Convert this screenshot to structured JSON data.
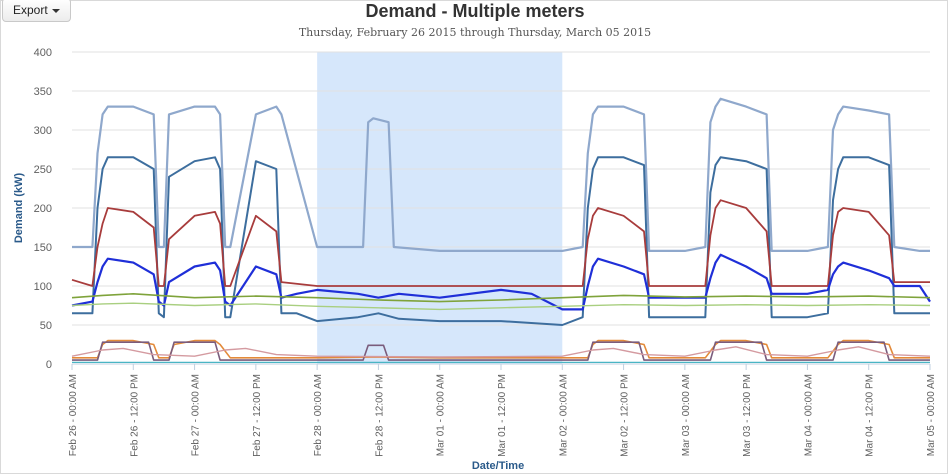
{
  "toolbar": {
    "export_label": "Export",
    "export_icon": "caret-down-icon"
  },
  "chart_data": {
    "type": "line",
    "title": "Demand - Multiple meters",
    "subtitle": "Thursday, February 26 2015 through Thursday, March 05 2015",
    "xlabel": "Date/Time",
    "ylabel": "Demand (kW)",
    "ylim": [
      0,
      400
    ],
    "yticks": [
      0,
      50,
      100,
      150,
      200,
      250,
      300,
      350,
      400
    ],
    "grid": true,
    "x_range_hours": [
      0,
      168
    ],
    "x_ticks": [
      {
        "h": 0,
        "label": "Feb 26 - 00:00 AM"
      },
      {
        "h": 12,
        "label": "Feb 26 - 12:00 PM"
      },
      {
        "h": 24,
        "label": "Feb 27 - 00:00 AM"
      },
      {
        "h": 36,
        "label": "Feb 27 - 12:00 PM"
      },
      {
        "h": 48,
        "label": "Feb 28 - 00:00 AM"
      },
      {
        "h": 60,
        "label": "Feb 28 - 12:00 PM"
      },
      {
        "h": 72,
        "label": "Mar 01 - 00:00 AM"
      },
      {
        "h": 84,
        "label": "Mar 01 - 12:00 PM"
      },
      {
        "h": 96,
        "label": "Mar 02 - 00:00 AM"
      },
      {
        "h": 108,
        "label": "Mar 02 - 12:00 PM"
      },
      {
        "h": 120,
        "label": "Mar 03 - 00:00 AM"
      },
      {
        "h": 132,
        "label": "Mar 03 - 12:00 PM"
      },
      {
        "h": 144,
        "label": "Mar 04 - 00:00 AM"
      },
      {
        "h": 156,
        "label": "Mar 04 - 12:00 PM"
      },
      {
        "h": 168,
        "label": "Mar 05 - 00:00 AM"
      }
    ],
    "highlight_band": {
      "from_h": 48,
      "to_h": 96,
      "color": "#d6e7fb"
    },
    "series": [
      {
        "color": "#8fa8cc",
        "width": 2.2,
        "x": [
          0,
          4,
          5,
          6,
          7,
          12,
          16,
          17,
          18,
          19,
          24,
          28,
          29,
          30,
          31,
          36,
          40,
          41,
          48,
          57,
          58,
          59,
          62,
          63,
          72,
          96,
          100,
          101,
          102,
          103,
          108,
          112,
          113,
          120,
          124,
          125,
          126,
          127,
          132,
          136,
          137,
          144,
          148,
          149,
          150,
          151,
          156,
          160,
          161,
          166,
          168
        ],
        "y": [
          150,
          150,
          270,
          320,
          330,
          330,
          320,
          150,
          150,
          320,
          330,
          330,
          320,
          150,
          150,
          320,
          330,
          320,
          150,
          150,
          310,
          315,
          310,
          150,
          145,
          145,
          150,
          270,
          320,
          330,
          330,
          320,
          145,
          145,
          150,
          310,
          330,
          340,
          330,
          320,
          145,
          145,
          150,
          300,
          320,
          330,
          325,
          320,
          150,
          145,
          145
        ]
      },
      {
        "color": "#3d6e9e",
        "width": 2,
        "x": [
          0,
          4,
          5,
          6,
          7,
          12,
          16,
          17,
          18,
          19,
          24,
          28,
          29,
          30,
          31,
          36,
          40,
          41,
          44,
          48,
          56,
          60,
          64,
          72,
          84,
          96,
          100,
          101,
          102,
          103,
          108,
          112,
          113,
          120,
          124,
          125,
          126,
          127,
          132,
          136,
          137,
          144,
          148,
          149,
          150,
          151,
          156,
          160,
          161,
          166,
          168
        ],
        "y": [
          65,
          65,
          200,
          250,
          265,
          265,
          250,
          65,
          60,
          240,
          260,
          265,
          250,
          60,
          60,
          260,
          250,
          65,
          65,
          55,
          60,
          65,
          58,
          55,
          55,
          50,
          60,
          200,
          250,
          265,
          265,
          255,
          60,
          60,
          60,
          220,
          255,
          265,
          260,
          250,
          60,
          60,
          65,
          210,
          250,
          265,
          265,
          255,
          65,
          65,
          65
        ]
      },
      {
        "color": "#a83c3c",
        "width": 1.8,
        "x": [
          0,
          4,
          5,
          6,
          7,
          12,
          16,
          17,
          18,
          19,
          24,
          28,
          29,
          30,
          31,
          36,
          40,
          41,
          48,
          60,
          72,
          84,
          96,
          100,
          101,
          102,
          103,
          108,
          112,
          113,
          120,
          124,
          125,
          126,
          127,
          132,
          136,
          137,
          144,
          148,
          149,
          150,
          151,
          156,
          160,
          161,
          166,
          168
        ],
        "y": [
          108,
          100,
          150,
          180,
          200,
          195,
          175,
          100,
          100,
          160,
          190,
          195,
          180,
          100,
          100,
          190,
          170,
          105,
          100,
          100,
          100,
          100,
          100,
          100,
          160,
          190,
          200,
          190,
          170,
          100,
          100,
          100,
          165,
          200,
          210,
          200,
          170,
          100,
          100,
          100,
          165,
          195,
          200,
          195,
          165,
          105,
          105,
          105
        ]
      },
      {
        "color": "#1f2fd8",
        "width": 2.2,
        "x": [
          0,
          4,
          5,
          6,
          7,
          12,
          16,
          17,
          18,
          19,
          24,
          28,
          29,
          30,
          31,
          36,
          40,
          41,
          44,
          48,
          56,
          60,
          64,
          72,
          84,
          90,
          96,
          100,
          101,
          102,
          103,
          108,
          112,
          113,
          120,
          124,
          125,
          126,
          127,
          132,
          136,
          137,
          144,
          148,
          149,
          150,
          151,
          156,
          160,
          161,
          166,
          168
        ],
        "y": [
          75,
          80,
          105,
          125,
          135,
          130,
          115,
          80,
          75,
          105,
          125,
          130,
          120,
          80,
          75,
          125,
          115,
          85,
          90,
          95,
          90,
          85,
          90,
          85,
          95,
          90,
          70,
          70,
          100,
          125,
          135,
          125,
          115,
          85,
          85,
          85,
          110,
          130,
          140,
          125,
          110,
          90,
          90,
          95,
          115,
          125,
          130,
          120,
          110,
          100,
          100,
          80
        ]
      },
      {
        "color": "#7fa33b",
        "width": 1.6,
        "x": [
          0,
          6,
          12,
          24,
          36,
          48,
          60,
          72,
          84,
          96,
          108,
          120,
          132,
          144,
          156,
          168
        ],
        "y": [
          85,
          88,
          90,
          85,
          87,
          85,
          82,
          80,
          82,
          85,
          88,
          86,
          87,
          86,
          87,
          85
        ]
      },
      {
        "color": "#a9cf80",
        "width": 1.4,
        "x": [
          0,
          6,
          12,
          24,
          36,
          48,
          60,
          72,
          84,
          96,
          108,
          120,
          132,
          144,
          156,
          168
        ],
        "y": [
          75,
          77,
          78,
          75,
          77,
          74,
          72,
          70,
          72,
          74,
          76,
          75,
          76,
          75,
          76,
          75
        ]
      },
      {
        "color": "#e38a3a",
        "width": 1.6,
        "x": [
          0,
          5,
          6,
          7,
          12,
          16,
          17,
          19,
          20,
          24,
          28,
          29,
          31,
          36,
          40,
          41,
          48,
          60,
          72,
          96,
          101,
          102,
          103,
          108,
          112,
          113,
          124,
          126,
          127,
          132,
          136,
          137,
          148,
          150,
          151,
          156,
          160,
          161,
          168
        ],
        "y": [
          8,
          8,
          25,
          30,
          30,
          25,
          8,
          8,
          25,
          30,
          30,
          25,
          8,
          8,
          8,
          8,
          8,
          9,
          8,
          8,
          8,
          25,
          30,
          30,
          25,
          8,
          8,
          25,
          30,
          30,
          25,
          8,
          8,
          25,
          30,
          30,
          25,
          8,
          8
        ]
      },
      {
        "color": "#7a5c7c",
        "width": 1.6,
        "x": [
          0,
          5,
          6,
          15,
          16,
          19,
          20,
          28,
          29,
          48,
          57,
          58,
          61,
          62,
          96,
          101,
          102,
          111,
          112,
          124,
          125,
          126,
          135,
          136,
          148,
          149,
          150,
          159,
          160,
          168
        ],
        "y": [
          5,
          5,
          28,
          28,
          5,
          5,
          28,
          28,
          5,
          5,
          5,
          24,
          24,
          5,
          5,
          5,
          28,
          28,
          5,
          5,
          5,
          28,
          28,
          5,
          5,
          5,
          28,
          28,
          5,
          5
        ]
      },
      {
        "color": "#d49aa0",
        "width": 1.4,
        "x": [
          0,
          6,
          10,
          16,
          24,
          30,
          34,
          40,
          48,
          72,
          96,
          102,
          106,
          112,
          120,
          126,
          130,
          136,
          144,
          150,
          154,
          160,
          168
        ],
        "y": [
          10,
          18,
          20,
          12,
          10,
          18,
          20,
          12,
          10,
          9,
          10,
          18,
          20,
          12,
          10,
          18,
          22,
          12,
          10,
          18,
          22,
          12,
          10
        ]
      },
      {
        "color": "#4ab5c4",
        "width": 1.2,
        "x": [
          0,
          168
        ],
        "y": [
          2,
          2
        ]
      }
    ]
  }
}
